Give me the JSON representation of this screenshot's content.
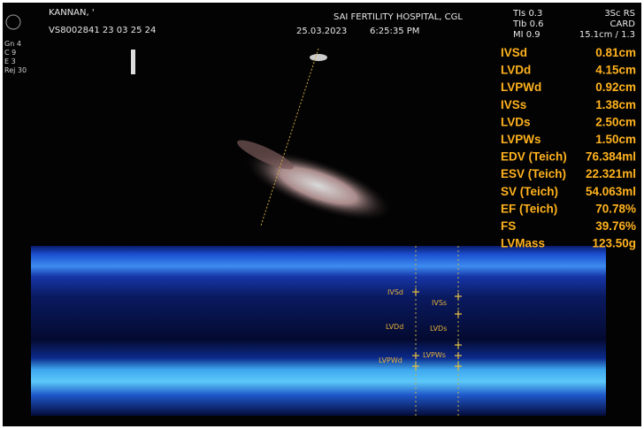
{
  "header": {
    "patient": "KANNAN, '",
    "id": "VS8002841 23 03 25 24",
    "hospital": "SAI FERTILITY HOSPITAL, CGL",
    "date": "25.03.2023",
    "time": "6:25:35 PM"
  },
  "settings": [
    "Gn 4",
    "C 9",
    "E 3",
    "Rej 30"
  ],
  "indices": [
    "TIs 0.3",
    "TIb 0.6",
    "MI 0.9"
  ],
  "probe": [
    "3Sc RS",
    "CARD",
    "15.1cm / 1.3"
  ],
  "measurements": [
    {
      "label": "IVSd",
      "value": "0.81cm"
    },
    {
      "label": "LVDd",
      "value": "4.15cm"
    },
    {
      "label": "LVPWd",
      "value": "0.92cm"
    },
    {
      "label": "IVSs",
      "value": "1.38cm"
    },
    {
      "label": "LVDs",
      "value": "2.50cm"
    },
    {
      "label": "LVPWs",
      "value": "1.50cm"
    },
    {
      "label": "EDV (Teich)",
      "value": "76.384ml"
    },
    {
      "label": "ESV (Teich)",
      "value": "22.321ml"
    },
    {
      "label": "SV (Teich)",
      "value": "54.063ml"
    },
    {
      "label": "EF (Teich)",
      "value": "70.78%"
    },
    {
      "label": "FS",
      "value": "39.76%"
    },
    {
      "label": "LVMass",
      "value": "123.50g"
    }
  ],
  "calipers": [
    "IVSd",
    "IVSs",
    "LVDd",
    "LVDs",
    "LVPWd",
    "LVPWs"
  ]
}
